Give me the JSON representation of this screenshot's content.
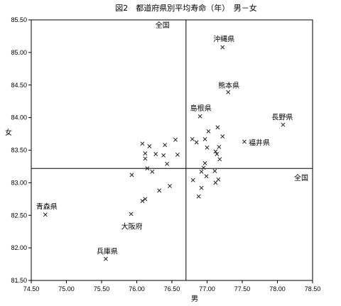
{
  "chart_data": {
    "type": "scatter",
    "title": "図2　都道府県別平均寿命（年）　男－女",
    "xlabel": "男",
    "ylabel": "女",
    "xlim": [
      74.5,
      78.5
    ],
    "ylim": [
      81.5,
      85.5
    ],
    "xticks": [
      "74.50",
      "75.00",
      "75.50",
      "76.00",
      "76.50",
      "77.00",
      "77.50",
      "78.00",
      "78.50"
    ],
    "yticks": [
      "81.50",
      "82.00",
      "82.50",
      "83.00",
      "83.50",
      "84.00",
      "84.50",
      "85.00",
      "85.50"
    ],
    "reference": {
      "x": 76.7,
      "y": 83.22,
      "x_label": "全国",
      "y_label": "全国"
    },
    "points": [
      {
        "x": 74.7,
        "y": 82.51,
        "label": "青森県"
      },
      {
        "x": 75.56,
        "y": 81.83,
        "label": "兵庫県"
      },
      {
        "x": 75.92,
        "y": 82.52,
        "label": "大阪府"
      },
      {
        "x": 77.22,
        "y": 85.08,
        "label": "沖縄県"
      },
      {
        "x": 77.3,
        "y": 84.39,
        "label": "熊本県"
      },
      {
        "x": 78.08,
        "y": 83.89,
        "label": "長野県"
      },
      {
        "x": 77.53,
        "y": 83.63,
        "label": "福井県"
      },
      {
        "x": 76.9,
        "y": 84.02,
        "label": "島根県"
      },
      {
        "x": 76.88,
        "y": 82.79,
        "label": ""
      },
      {
        "x": 76.92,
        "y": 82.92,
        "label": ""
      },
      {
        "x": 76.99,
        "y": 83.1,
        "label": ""
      },
      {
        "x": 76.95,
        "y": 83.23,
        "label": ""
      },
      {
        "x": 76.92,
        "y": 83.17,
        "label": ""
      },
      {
        "x": 76.97,
        "y": 83.3,
        "label": ""
      },
      {
        "x": 76.8,
        "y": 83.04,
        "label": ""
      },
      {
        "x": 77.12,
        "y": 83.0,
        "label": ""
      },
      {
        "x": 77.16,
        "y": 83.05,
        "label": ""
      },
      {
        "x": 77.11,
        "y": 83.18,
        "label": ""
      },
      {
        "x": 77.18,
        "y": 83.36,
        "label": ""
      },
      {
        "x": 77.14,
        "y": 83.44,
        "label": ""
      },
      {
        "x": 77.12,
        "y": 83.48,
        "label": ""
      },
      {
        "x": 77.17,
        "y": 83.55,
        "label": ""
      },
      {
        "x": 77.0,
        "y": 83.54,
        "label": ""
      },
      {
        "x": 76.97,
        "y": 83.67,
        "label": ""
      },
      {
        "x": 76.85,
        "y": 83.62,
        "label": ""
      },
      {
        "x": 76.79,
        "y": 83.67,
        "label": ""
      },
      {
        "x": 77.22,
        "y": 83.71,
        "label": ""
      },
      {
        "x": 77.15,
        "y": 83.85,
        "label": ""
      },
      {
        "x": 77.02,
        "y": 83.79,
        "label": ""
      },
      {
        "x": 76.55,
        "y": 83.66,
        "label": ""
      },
      {
        "x": 76.58,
        "y": 83.43,
        "label": ""
      },
      {
        "x": 76.4,
        "y": 83.58,
        "label": ""
      },
      {
        "x": 76.18,
        "y": 83.56,
        "label": ""
      },
      {
        "x": 76.08,
        "y": 83.6,
        "label": ""
      },
      {
        "x": 76.12,
        "y": 83.45,
        "label": ""
      },
      {
        "x": 76.12,
        "y": 83.37,
        "label": ""
      },
      {
        "x": 76.27,
        "y": 83.44,
        "label": ""
      },
      {
        "x": 76.38,
        "y": 83.42,
        "label": ""
      },
      {
        "x": 76.43,
        "y": 83.29,
        "label": ""
      },
      {
        "x": 76.15,
        "y": 83.22,
        "label": ""
      },
      {
        "x": 76.22,
        "y": 83.17,
        "label": ""
      },
      {
        "x": 75.93,
        "y": 83.12,
        "label": ""
      },
      {
        "x": 76.32,
        "y": 82.88,
        "label": ""
      },
      {
        "x": 76.47,
        "y": 82.95,
        "label": ""
      },
      {
        "x": 76.12,
        "y": 82.75,
        "label": ""
      },
      {
        "x": 76.08,
        "y": 82.72,
        "label": ""
      }
    ]
  }
}
